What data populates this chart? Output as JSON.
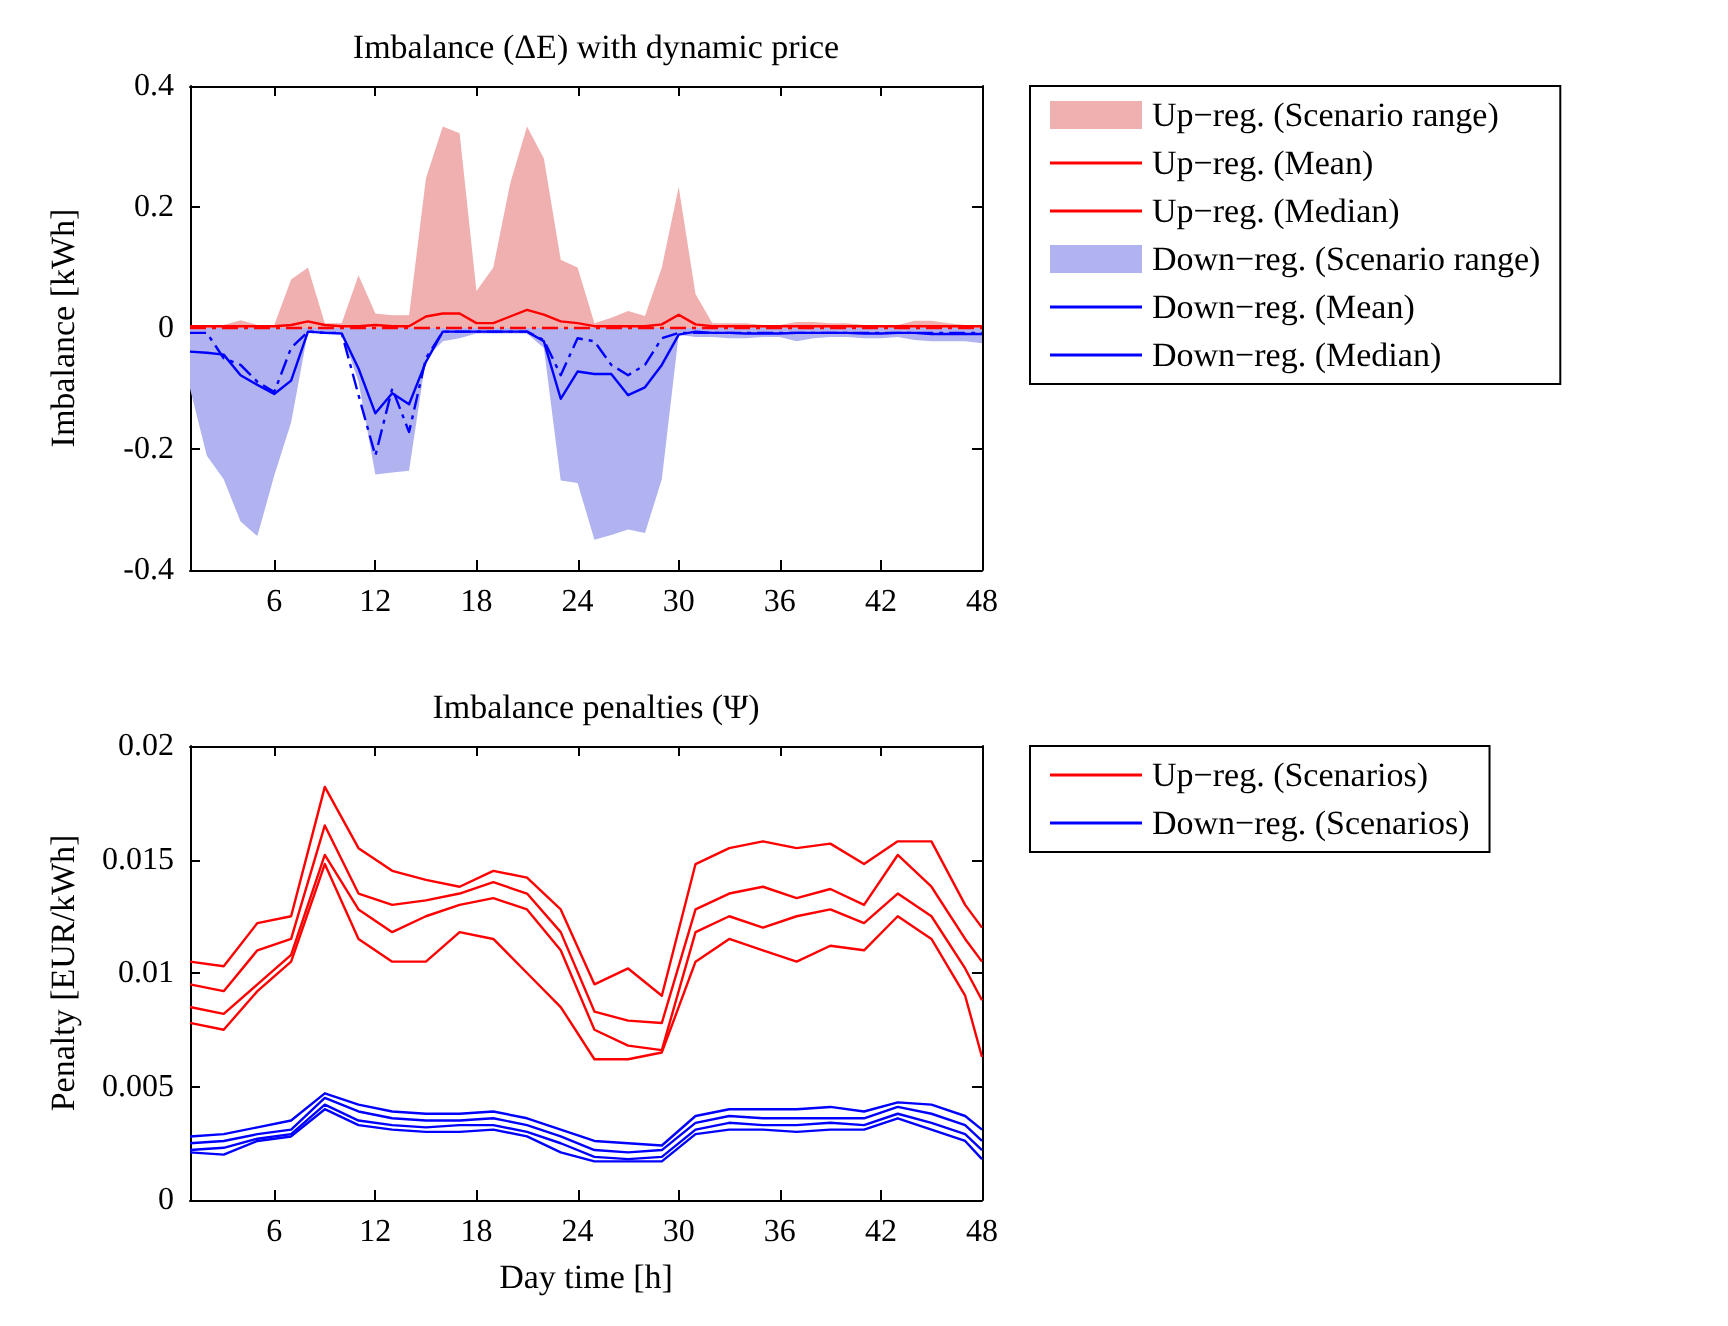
{
  "chart_data": [
    {
      "type": "line",
      "title": "Imbalance (ΔE) with dynamic price",
      "ylabel": "Imbalance [kWh]",
      "legend": "right",
      "marker": "none",
      "xlim": [
        1,
        48
      ],
      "xticks": [
        6,
        12,
        18,
        24,
        30,
        36,
        42,
        48
      ],
      "ylim": [
        -0.4,
        0.4
      ],
      "yticks": [
        -0.4,
        -0.2,
        0,
        0.2,
        0.4
      ],
      "x": [
        1,
        2,
        3,
        4,
        5,
        6,
        7,
        8,
        9,
        10,
        11,
        12,
        13,
        14,
        15,
        16,
        17,
        18,
        19,
        20,
        21,
        22,
        23,
        24,
        25,
        26,
        27,
        28,
        29,
        30,
        31,
        32,
        33,
        34,
        35,
        36,
        37,
        38,
        39,
        40,
        41,
        42,
        43,
        44,
        45,
        46,
        47,
        48
      ],
      "series": [
        {
          "name": "Up−reg. (Scenario range)",
          "type": "area",
          "color": "#f0b0b0",
          "values": [
            0.005,
            0.005,
            0.005,
            0.013,
            0.005,
            0.005,
            0.08,
            0.1,
            0.008,
            0.008,
            0.087,
            0.024,
            0.021,
            0.021,
            0.247,
            0.333,
            0.322,
            0.061,
            0.1,
            0.239,
            0.333,
            0.28,
            0.113,
            0.1,
            0.008,
            0.017,
            0.028,
            0.02,
            0.1,
            0.233,
            0.056,
            0.008,
            0.008,
            0.008,
            0.005,
            0.005,
            0.01,
            0.01,
            0.008,
            0.008,
            0.005,
            0.005,
            0.005,
            0.012,
            0.012,
            0.008,
            0.005,
            0.005
          ]
        },
        {
          "name": "Up−reg. (Mean)",
          "color": "#ff0000",
          "line_style": "solid",
          "values": [
            0.003,
            0.003,
            0.003,
            0.003,
            0.003,
            0.003,
            0.005,
            0.011,
            0.005,
            0.003,
            0.003,
            0.005,
            0.003,
            0.003,
            0.019,
            0.024,
            0.024,
            0.008,
            0.008,
            0.019,
            0.03,
            0.022,
            0.011,
            0.008,
            0.003,
            0.003,
            0.003,
            0.003,
            0.006,
            0.022,
            0.006,
            0.003,
            0.003,
            0.003,
            0.003,
            0.003,
            0.003,
            0.003,
            0.003,
            0.003,
            0.003,
            0.003,
            0.003,
            0.003,
            0.003,
            0.003,
            0.003,
            0.003
          ]
        },
        {
          "name": "Up−reg. (Median)",
          "color": "#ff0000",
          "line_style": "dashdot",
          "values": [
            0,
            0,
            0,
            0,
            0,
            0,
            0,
            0,
            0,
            0,
            0,
            0,
            0,
            0,
            0,
            0,
            0,
            0,
            0,
            0,
            0,
            0,
            0,
            0,
            0,
            0,
            0,
            0,
            0,
            0,
            0,
            0,
            0,
            0,
            0,
            0,
            0,
            0,
            0,
            0,
            0,
            0,
            0,
            0,
            0,
            0,
            0,
            0
          ]
        },
        {
          "name": "Down−reg. (Scenario range)",
          "type": "area",
          "color": "#b0b3f0",
          "values": [
            -0.1,
            -0.211,
            -0.25,
            -0.32,
            -0.344,
            -0.244,
            -0.156,
            -0.006,
            -0.008,
            -0.008,
            -0.089,
            -0.242,
            -0.239,
            -0.236,
            -0.05,
            -0.022,
            -0.017,
            -0.009,
            -0.009,
            -0.009,
            -0.009,
            -0.033,
            -0.252,
            -0.256,
            -0.35,
            -0.342,
            -0.333,
            -0.339,
            -0.25,
            -0.011,
            -0.015,
            -0.015,
            -0.017,
            -0.017,
            -0.015,
            -0.015,
            -0.022,
            -0.017,
            -0.015,
            -0.015,
            -0.017,
            -0.017,
            -0.015,
            -0.02,
            -0.022,
            -0.022,
            -0.022,
            -0.025
          ]
        },
        {
          "name": "Down−reg. (Mean)",
          "color": "#0000ff",
          "line_style": "solid",
          "values": [
            -0.039,
            -0.041,
            -0.044,
            -0.078,
            -0.094,
            -0.109,
            -0.087,
            -0.006,
            -0.008,
            -0.009,
            -0.067,
            -0.141,
            -0.108,
            -0.126,
            -0.056,
            -0.006,
            -0.006,
            -0.006,
            -0.006,
            -0.006,
            -0.006,
            -0.022,
            -0.117,
            -0.072,
            -0.076,
            -0.076,
            -0.111,
            -0.098,
            -0.061,
            -0.011,
            -0.006,
            -0.008,
            -0.008,
            -0.009,
            -0.009,
            -0.009,
            -0.008,
            -0.008,
            -0.008,
            -0.008,
            -0.009,
            -0.009,
            -0.008,
            -0.008,
            -0.01,
            -0.01,
            -0.01,
            -0.01
          ]
        },
        {
          "name": "Down−reg. (Median)",
          "color": "#0000ff",
          "line_style": "dashdot",
          "values": [
            -0.008,
            -0.008,
            -0.05,
            -0.061,
            -0.089,
            -0.106,
            -0.033,
            -0.006,
            -0.008,
            -0.008,
            -0.111,
            -0.211,
            -0.1,
            -0.172,
            -0.05,
            -0.006,
            -0.006,
            -0.006,
            -0.006,
            -0.006,
            -0.006,
            -0.02,
            -0.078,
            -0.017,
            -0.022,
            -0.061,
            -0.078,
            -0.061,
            -0.017,
            -0.008,
            -0.008,
            -0.008,
            -0.008,
            -0.008,
            -0.008,
            -0.008,
            -0.008,
            -0.008,
            -0.008,
            -0.008,
            -0.008,
            -0.008,
            -0.008,
            -0.008,
            -0.008,
            -0.008,
            -0.008,
            -0.008
          ]
        }
      ]
    },
    {
      "type": "line",
      "title": "Imbalance penalties (Ψ)",
      "xlabel": "Day time [h]",
      "ylabel": "Penalty [EUR/kWh]",
      "legend": "right",
      "marker": "none",
      "line_style": "solid",
      "xlim": [
        1,
        48
      ],
      "xticks": [
        6,
        12,
        18,
        24,
        30,
        36,
        42,
        48
      ],
      "ylim": [
        0,
        0.02
      ],
      "yticks": [
        0,
        0.005,
        0.01,
        0.015,
        0.02
      ],
      "x": [
        1,
        3,
        5,
        7,
        9,
        11,
        13,
        15,
        17,
        19,
        21,
        23,
        25,
        27,
        29,
        31,
        33,
        35,
        37,
        39,
        41,
        43,
        45,
        47,
        48
      ],
      "series": [
        {
          "name": "Up−reg. (Scenarios)",
          "color": "#ff0000",
          "values": [
            0.0105,
            0.0103,
            0.0122,
            0.0125,
            0.0182,
            0.0155,
            0.0145,
            0.0141,
            0.0138,
            0.0145,
            0.0142,
            0.0128,
            0.0095,
            0.0102,
            0.009,
            0.0148,
            0.0155,
            0.0158,
            0.0155,
            0.0157,
            0.0148,
            0.0158,
            0.0158,
            0.013,
            0.012
          ]
        },
        {
          "color": "#ff0000",
          "values": [
            0.0095,
            0.0092,
            0.011,
            0.0115,
            0.0165,
            0.0135,
            0.013,
            0.0132,
            0.0135,
            0.014,
            0.0135,
            0.0118,
            0.0083,
            0.0079,
            0.0078,
            0.0128,
            0.0135,
            0.0138,
            0.0133,
            0.0137,
            0.013,
            0.0152,
            0.0138,
            0.0115,
            0.0105
          ]
        },
        {
          "color": "#ff0000",
          "values": [
            0.0085,
            0.0082,
            0.0095,
            0.0108,
            0.0152,
            0.0128,
            0.0118,
            0.0125,
            0.013,
            0.0133,
            0.0128,
            0.011,
            0.0075,
            0.0068,
            0.0066,
            0.0118,
            0.0125,
            0.012,
            0.0125,
            0.0128,
            0.0122,
            0.0135,
            0.0125,
            0.0102,
            0.0088
          ]
        },
        {
          "color": "#ff0000",
          "values": [
            0.0078,
            0.0075,
            0.0092,
            0.0105,
            0.0148,
            0.0115,
            0.0105,
            0.0105,
            0.0118,
            0.0115,
            0.01,
            0.0085,
            0.0062,
            0.0062,
            0.0065,
            0.0105,
            0.0115,
            0.011,
            0.0105,
            0.0112,
            0.011,
            0.0125,
            0.0115,
            0.009,
            0.0063
          ]
        },
        {
          "name": "Down−reg. (Scenarios)",
          "color": "#0000ff",
          "values": [
            0.0028,
            0.0029,
            0.0032,
            0.0035,
            0.0047,
            0.0042,
            0.0039,
            0.0038,
            0.0038,
            0.0039,
            0.0036,
            0.0031,
            0.0026,
            0.0025,
            0.0024,
            0.0037,
            0.004,
            0.004,
            0.004,
            0.0041,
            0.0039,
            0.0043,
            0.0042,
            0.0037,
            0.0031
          ]
        },
        {
          "color": "#0000ff",
          "values": [
            0.0025,
            0.0026,
            0.0029,
            0.0031,
            0.0045,
            0.0039,
            0.0036,
            0.0035,
            0.0035,
            0.0036,
            0.0033,
            0.0028,
            0.0022,
            0.0021,
            0.0022,
            0.0034,
            0.0037,
            0.0036,
            0.0036,
            0.0036,
            0.0036,
            0.0041,
            0.0038,
            0.0033,
            0.0026
          ]
        },
        {
          "color": "#0000ff",
          "values": [
            0.0022,
            0.0023,
            0.0027,
            0.0029,
            0.0042,
            0.0035,
            0.0033,
            0.0032,
            0.0033,
            0.0033,
            0.003,
            0.0025,
            0.0019,
            0.0018,
            0.0019,
            0.0031,
            0.0034,
            0.0033,
            0.0033,
            0.0034,
            0.0033,
            0.0038,
            0.0034,
            0.0029,
            0.0022
          ]
        },
        {
          "color": "#0000ff",
          "values": [
            0.0021,
            0.002,
            0.0026,
            0.0028,
            0.004,
            0.0033,
            0.0031,
            0.003,
            0.003,
            0.0031,
            0.0028,
            0.0021,
            0.0017,
            0.0017,
            0.0017,
            0.0029,
            0.0031,
            0.0031,
            0.003,
            0.0031,
            0.0031,
            0.0036,
            0.0031,
            0.0026,
            0.0018
          ]
        }
      ]
    }
  ]
}
